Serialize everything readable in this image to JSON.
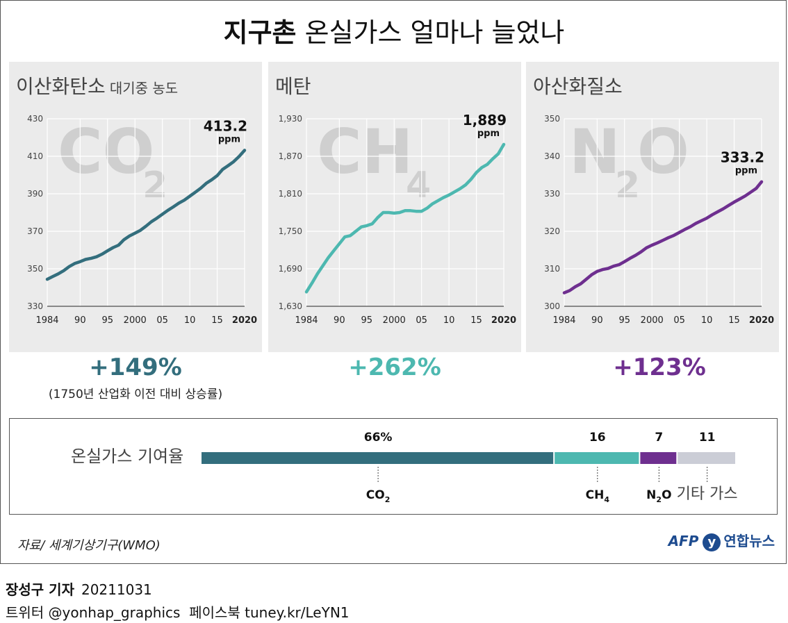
{
  "title": {
    "bold": "지구촌",
    "rest": "온실가스 얼마나 늘었나"
  },
  "chart_data": [
    {
      "type": "line",
      "title": "이산화탄소",
      "subtitle": "대기중 농도",
      "watermark": "CO",
      "watermark_sub": "2",
      "color": "#336e7d",
      "ylim": [
        330,
        430
      ],
      "yticks": [
        330,
        350,
        370,
        390,
        410,
        430
      ],
      "ytick_labels": [
        "330",
        "350",
        "370",
        "390",
        "410",
        "430"
      ],
      "xlim": [
        1984,
        2020
      ],
      "xticks": [
        1984,
        1990,
        1995,
        2000,
        2005,
        2010,
        2015,
        2020
      ],
      "xtick_labels": [
        "1984",
        "90",
        "95",
        "2000",
        "05",
        "10",
        "15",
        "2020"
      ],
      "x": [
        1984,
        1985,
        1986,
        1987,
        1988,
        1989,
        1990,
        1991,
        1992,
        1993,
        1994,
        1995,
        1996,
        1997,
        1998,
        1999,
        2000,
        2001,
        2002,
        2003,
        2004,
        2005,
        2006,
        2007,
        2008,
        2009,
        2010,
        2011,
        2012,
        2013,
        2014,
        2015,
        2016,
        2017,
        2018,
        2019,
        2020
      ],
      "y": [
        344.4,
        345.9,
        347.3,
        349.0,
        351.2,
        352.8,
        353.8,
        355.0,
        355.6,
        356.4,
        357.8,
        359.6,
        361.3,
        362.6,
        365.5,
        367.5,
        369.0,
        370.5,
        372.7,
        375.1,
        377.0,
        379.1,
        381.2,
        383.0,
        385.0,
        386.6,
        388.7,
        390.8,
        393.0,
        395.6,
        397.5,
        399.7,
        403.0,
        405.0,
        407.1,
        409.9,
        413.2
      ],
      "end_value": "413.2",
      "end_unit": "ppm",
      "change": "+149%",
      "note": "(1750년 산업화 이전 대비 상승률)"
    },
    {
      "type": "line",
      "title": "메탄",
      "subtitle": "",
      "watermark": "CH",
      "watermark_sub": "4",
      "color": "#4db8b0",
      "ylim": [
        1630,
        1930
      ],
      "yticks": [
        1630,
        1690,
        1750,
        1810,
        1870,
        1930
      ],
      "ytick_labels": [
        "1,630",
        "1,690",
        "1,750",
        "1,810",
        "1,870",
        "1,930"
      ],
      "xlim": [
        1984,
        2020
      ],
      "xticks": [
        1984,
        1990,
        1995,
        2000,
        2005,
        2010,
        2015,
        2020
      ],
      "xtick_labels": [
        "1984",
        "90",
        "95",
        "2000",
        "05",
        "10",
        "15",
        "2020"
      ],
      "x": [
        1984,
        1985,
        1986,
        1987,
        1988,
        1989,
        1990,
        1991,
        1992,
        1993,
        1994,
        1995,
        1996,
        1997,
        1998,
        1999,
        2000,
        2001,
        2002,
        2003,
        2004,
        2005,
        2006,
        2007,
        2008,
        2009,
        2010,
        2011,
        2012,
        2013,
        2014,
        2015,
        2016,
        2017,
        2018,
        2019,
        2020
      ],
      "y": [
        1653,
        1667,
        1682,
        1695,
        1708,
        1719,
        1730,
        1741,
        1743,
        1750,
        1757,
        1759,
        1762,
        1772,
        1780,
        1780,
        1779,
        1780,
        1783,
        1783,
        1782,
        1782,
        1787,
        1794,
        1799,
        1804,
        1808,
        1813,
        1818,
        1824,
        1833,
        1844,
        1852,
        1857,
        1866,
        1874,
        1889
      ],
      "end_value": "1,889",
      "end_unit": "ppm",
      "change": "+262%",
      "note": ""
    },
    {
      "type": "line",
      "title": "아산화질소",
      "subtitle": "",
      "watermark": "N",
      "watermark_sub": "2",
      "watermark_tail": "O",
      "color": "#6e2f8f",
      "ylim": [
        300,
        350
      ],
      "yticks": [
        300,
        310,
        320,
        330,
        340,
        350
      ],
      "ytick_labels": [
        "300",
        "310",
        "320",
        "330",
        "340",
        "350"
      ],
      "xlim": [
        1984,
        2020
      ],
      "xticks": [
        1984,
        1990,
        1995,
        2000,
        2005,
        2010,
        2015,
        2020
      ],
      "xtick_labels": [
        "1984",
        "90",
        "95",
        "2000",
        "05",
        "10",
        "15",
        "2020"
      ],
      "x": [
        1984,
        1985,
        1986,
        1987,
        1988,
        1989,
        1990,
        1991,
        1992,
        1993,
        1994,
        1995,
        1996,
        1997,
        1998,
        1999,
        2000,
        2001,
        2002,
        2003,
        2004,
        2005,
        2006,
        2007,
        2008,
        2009,
        2010,
        2011,
        2012,
        2013,
        2014,
        2015,
        2016,
        2017,
        2018,
        2019,
        2020
      ],
      "y": [
        303.6,
        304.2,
        305.2,
        306.0,
        307.2,
        308.4,
        309.3,
        309.8,
        310.1,
        310.7,
        311.1,
        311.9,
        312.8,
        313.6,
        314.5,
        315.6,
        316.3,
        316.9,
        317.6,
        318.3,
        318.9,
        319.7,
        320.5,
        321.2,
        322.1,
        322.8,
        323.5,
        324.4,
        325.2,
        326.0,
        326.9,
        327.8,
        328.6,
        329.4,
        330.4,
        331.4,
        333.2
      ],
      "end_value": "333.2",
      "end_unit": "ppm",
      "change": "+123%",
      "note": ""
    },
    {
      "type": "bar",
      "title": "온실가스 기여율",
      "categories": [
        "CO2",
        "CH4",
        "N2O",
        "기타 가스"
      ],
      "values": [
        66,
        16,
        7,
        11
      ],
      "value_labels": [
        "66%",
        "16",
        "7",
        "11"
      ],
      "colors": [
        "#336e7d",
        "#4db8b0",
        "#6e2f8f",
        "#cbcdd6"
      ]
    }
  ],
  "contrib": {
    "labels": [
      {
        "main": "CO",
        "sub": "2",
        "tail": ""
      },
      {
        "main": "CH",
        "sub": "4",
        "tail": ""
      },
      {
        "main": "N",
        "sub": "2",
        "tail": "O"
      },
      {
        "main": "기타 가스",
        "sub": "",
        "tail": ""
      }
    ]
  },
  "source": "자료/ 세계기상기구(WMO)",
  "logo": {
    "afp": "AFP",
    "mark": "y",
    "name": "연합뉴스"
  },
  "credit": {
    "reporter": "장성구 기자",
    "date": "20211031",
    "twitter": "트위터 @yonhap_graphics",
    "facebook": "페이스북 tuney.kr/LeYN1"
  }
}
